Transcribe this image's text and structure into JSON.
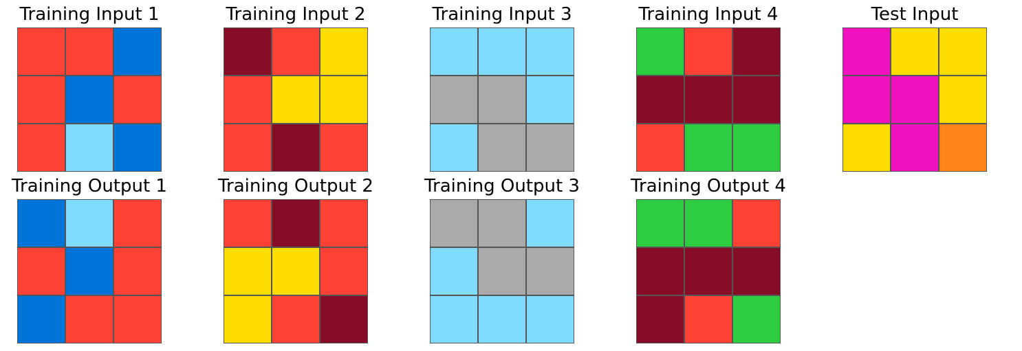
{
  "palette": {
    "0": "#000000",
    "1": "#0074D9",
    "2": "#FF4136",
    "3": "#2ECC40",
    "4": "#FFDC00",
    "5": "#AAAAAA",
    "6": "#F012BE",
    "7": "#FF851B",
    "8": "#7FDBFF",
    "9": "#870C25"
  },
  "panels": [
    {
      "title": "Training Input 1",
      "grid": [
        [
          2,
          2,
          1
        ],
        [
          2,
          1,
          2
        ],
        [
          2,
          8,
          1
        ]
      ]
    },
    {
      "title": "Training Input 2",
      "grid": [
        [
          9,
          2,
          4
        ],
        [
          2,
          4,
          4
        ],
        [
          2,
          9,
          2
        ]
      ]
    },
    {
      "title": "Training Input 3",
      "grid": [
        [
          8,
          8,
          8
        ],
        [
          5,
          5,
          8
        ],
        [
          8,
          5,
          5
        ]
      ]
    },
    {
      "title": "Training Input 4",
      "grid": [
        [
          3,
          2,
          9
        ],
        [
          9,
          9,
          9
        ],
        [
          2,
          3,
          3
        ]
      ]
    },
    {
      "title": "Test Input",
      "grid": [
        [
          6,
          4,
          4
        ],
        [
          6,
          6,
          4
        ],
        [
          4,
          6,
          7
        ]
      ]
    },
    {
      "title": "Training Output 1",
      "grid": [
        [
          1,
          8,
          2
        ],
        [
          2,
          1,
          2
        ],
        [
          1,
          2,
          2
        ]
      ]
    },
    {
      "title": "Training Output 2",
      "grid": [
        [
          2,
          9,
          2
        ],
        [
          4,
          4,
          2
        ],
        [
          4,
          2,
          9
        ]
      ]
    },
    {
      "title": "Training Output 3",
      "grid": [
        [
          5,
          5,
          8
        ],
        [
          8,
          5,
          5
        ],
        [
          8,
          8,
          8
        ]
      ]
    },
    {
      "title": "Training Output 4",
      "grid": [
        [
          3,
          3,
          2
        ],
        [
          9,
          9,
          9
        ],
        [
          9,
          2,
          3
        ]
      ]
    }
  ]
}
